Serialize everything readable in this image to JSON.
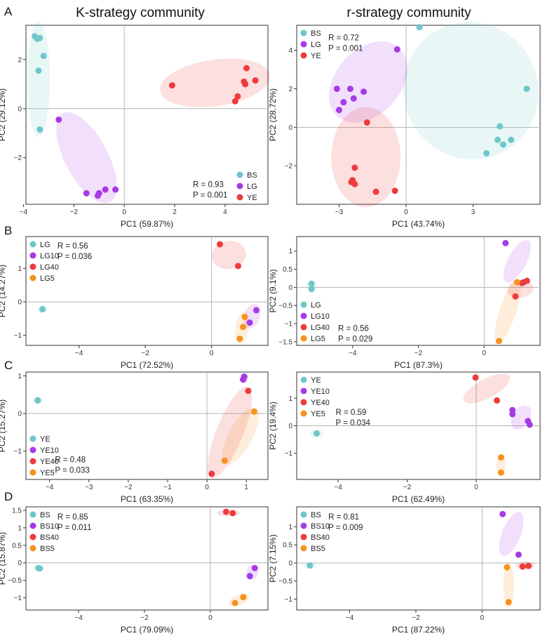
{
  "figure": {
    "column_titles": [
      "K-strategy community",
      "r-strategy community"
    ],
    "row_letters": [
      "A",
      "B",
      "C",
      "D"
    ]
  },
  "colors": {
    "teal": "#6ec6c9",
    "purple": "#a63ae6",
    "red": "#ee3b3b",
    "orange": "#f6921e"
  },
  "chart_data": [
    {
      "type": "scatter",
      "xlabel": "PC1 (59.87%)",
      "ylabel": "PC2 (29.12%)",
      "xlim": [
        -3.9,
        5.7
      ],
      "ylim": [
        -3.9,
        3.4
      ],
      "xticks": [
        -4,
        -2,
        0,
        2,
        4
      ],
      "yticks": [
        -2,
        0,
        2
      ],
      "stats": {
        "r": "R = 0.93",
        "p": "P = 0.001"
      },
      "legend": [
        "BS",
        "LG",
        "YE"
      ],
      "series": [
        {
          "name": "BS",
          "color": "teal",
          "ellipse": {
            "cx": -3.4,
            "cy": 1.2,
            "rx": 0.45,
            "ry": 2.35,
            "angle": 0
          },
          "points": [
            [
              -3.55,
              2.95
            ],
            [
              -3.45,
              2.85
            ],
            [
              -3.35,
              2.88
            ],
            [
              -3.2,
              2.15
            ],
            [
              -3.4,
              1.55
            ],
            [
              -3.35,
              -0.85
            ]
          ]
        },
        {
          "name": "LG",
          "color": "purple",
          "ellipse": {
            "cx": -1.5,
            "cy": -2.0,
            "rx": 0.85,
            "ry": 2.05,
            "angle": -28
          },
          "points": [
            [
              -2.6,
              -0.45
            ],
            [
              -1.5,
              -3.45
            ],
            [
              -1.05,
              -3.55
            ],
            [
              -1.0,
              -3.45
            ],
            [
              -0.75,
              -3.3
            ],
            [
              -0.35,
              -3.3
            ]
          ]
        },
        {
          "name": "YE",
          "color": "red",
          "ellipse": {
            "cx": 3.6,
            "cy": 1.05,
            "rx": 2.2,
            "ry": 0.95,
            "angle": -8
          },
          "points": [
            [
              1.9,
              0.95
            ],
            [
              4.5,
              0.5
            ],
            [
              4.4,
              0.3
            ],
            [
              4.75,
              1.1
            ],
            [
              4.8,
              1.0
            ],
            [
              4.85,
              1.65
            ],
            [
              5.2,
              1.15
            ]
          ]
        }
      ]
    },
    {
      "type": "scatter",
      "xlabel": "PC1 (43.74%)",
      "ylabel": "PC2 (28.72%)",
      "xlim": [
        -4.9,
        6.0
      ],
      "ylim": [
        -4.0,
        5.3
      ],
      "xticks": [
        -3,
        0,
        3
      ],
      "yticks": [
        -2,
        0,
        2,
        4
      ],
      "stats": {
        "r": "R = 0.72",
        "p": "P = 0.001"
      },
      "legend": [
        "BS",
        "LG",
        "YE"
      ],
      "series": [
        {
          "name": "BS",
          "color": "teal",
          "ellipse": {
            "cx": 2.9,
            "cy": 1.9,
            "rx": 3.0,
            "ry": 3.6,
            "angle": -28
          },
          "points": [
            [
              0.6,
              5.2
            ],
            [
              5.4,
              2.0
            ],
            [
              4.2,
              0.05
            ],
            [
              4.1,
              -0.65
            ],
            [
              4.35,
              -0.9
            ],
            [
              4.7,
              -0.65
            ],
            [
              3.6,
              -1.35
            ]
          ]
        },
        {
          "name": "LG",
          "color": "purple",
          "ellipse": {
            "cx": -1.7,
            "cy": 2.35,
            "rx": 1.45,
            "ry": 2.4,
            "angle": 42
          },
          "points": [
            [
              -0.4,
              4.05
            ],
            [
              -3.1,
              2.0
            ],
            [
              -2.5,
              2.0
            ],
            [
              -1.9,
              1.85
            ],
            [
              -2.8,
              1.3
            ],
            [
              -2.35,
              1.5
            ],
            [
              -3.0,
              0.9
            ]
          ]
        },
        {
          "name": "YE",
          "color": "red",
          "ellipse": {
            "cx": -1.8,
            "cy": -1.55,
            "rx": 1.55,
            "ry": 2.6,
            "angle": 0
          },
          "points": [
            [
              -1.75,
              0.25
            ],
            [
              -2.3,
              -2.1
            ],
            [
              -2.4,
              -2.75
            ],
            [
              -2.3,
              -2.95
            ],
            [
              -2.45,
              -2.85
            ],
            [
              -1.35,
              -3.35
            ],
            [
              -0.5,
              -3.3
            ]
          ]
        }
      ]
    },
    {
      "type": "scatter",
      "xlabel": "PC1 (72.52%)",
      "ylabel": "PC2 (14.27%)",
      "xlim": [
        -5.6,
        1.7
      ],
      "ylim": [
        -1.3,
        1.95
      ],
      "xticks": [
        -4,
        -2,
        0
      ],
      "yticks": [
        -1,
        0,
        1
      ],
      "stats": {
        "r": "R = 0.56",
        "p": "P = 0.036"
      },
      "legend": [
        "LG",
        "LG10",
        "LG40",
        "LG5"
      ],
      "series": [
        {
          "name": "LG",
          "color": "teal",
          "ellipse": {
            "cx": -5.1,
            "cy": -0.22,
            "rx": 0.14,
            "ry": 0.11,
            "angle": 0
          },
          "points": [
            [
              -5.1,
              -0.22
            ]
          ]
        },
        {
          "name": "LG10",
          "color": "purple",
          "ellipse": {
            "cx": 1.22,
            "cy": -0.42,
            "rx": 0.24,
            "ry": 0.38,
            "angle": 18
          },
          "points": [
            [
              1.35,
              -0.25
            ],
            [
              1.15,
              -0.62
            ]
          ]
        },
        {
          "name": "LG40",
          "color": "red",
          "ellipse": {
            "cx": 0.52,
            "cy": 1.4,
            "rx": 0.52,
            "ry": 0.42,
            "angle": -10
          },
          "points": [
            [
              0.25,
              1.72
            ],
            [
              0.8,
              1.07
            ]
          ]
        },
        {
          "name": "LG5",
          "color": "orange",
          "ellipse": {
            "cx": 0.92,
            "cy": -0.78,
            "rx": 0.2,
            "ry": 0.5,
            "angle": 8
          },
          "points": [
            [
              1.0,
              -0.45
            ],
            [
              0.95,
              -0.75
            ],
            [
              0.85,
              -1.1
            ]
          ]
        }
      ]
    },
    {
      "type": "scatter",
      "xlabel": "PC1 (87.3%)",
      "ylabel": "PC2 (9.1%)",
      "xlim": [
        -5.7,
        1.7
      ],
      "ylim": [
        -1.6,
        1.4
      ],
      "xticks": [
        -4,
        -2,
        0
      ],
      "yticks": [
        -1.5,
        -1.0,
        -0.5,
        0.0,
        0.5,
        1.0
      ],
      "stats": {
        "r": "R = 0.56",
        "p": "P = 0.029"
      },
      "legend": [
        "LG",
        "LG10",
        "LG40",
        "LG5"
      ],
      "series": [
        {
          "name": "LG",
          "color": "teal",
          "ellipse": {
            "cx": -5.25,
            "cy": 0.05,
            "rx": 0.16,
            "ry": 0.12,
            "angle": 0
          },
          "points": [
            [
              -5.25,
              0.1
            ],
            [
              -5.25,
              -0.05
            ]
          ]
        },
        {
          "name": "LG10",
          "color": "purple",
          "ellipse": {
            "cx": 1.0,
            "cy": 0.72,
            "rx": 0.28,
            "ry": 0.65,
            "angle": 28
          },
          "points": [
            [
              0.65,
              1.22
            ],
            [
              1.2,
              0.14
            ]
          ]
        },
        {
          "name": "LG40",
          "color": "red",
          "ellipse": {
            "cx": 1.1,
            "cy": -0.05,
            "rx": 0.4,
            "ry": 0.24,
            "angle": -10
          },
          "points": [
            [
              1.3,
              0.18
            ],
            [
              1.15,
              0.12
            ],
            [
              0.95,
              -0.25
            ]
          ]
        },
        {
          "name": "LG5",
          "color": "orange",
          "ellipse": {
            "cx": 0.72,
            "cy": -0.65,
            "rx": 0.25,
            "ry": 0.95,
            "angle": 18
          },
          "points": [
            [
              0.45,
              -1.48
            ],
            [
              1.0,
              0.14
            ]
          ]
        }
      ]
    },
    {
      "type": "scatter",
      "xlabel": "PC1 (63.35%)",
      "ylabel": "PC2 (15.27%)",
      "xlim": [
        -4.6,
        1.55
      ],
      "ylim": [
        -1.75,
        1.1
      ],
      "xticks": [
        -4,
        -3,
        -2,
        -1,
        0,
        1
      ],
      "yticks": [
        -1,
        0,
        1
      ],
      "stats": {
        "r": "R = 0.48",
        "p": "P = 0.033"
      },
      "legend": [
        "YE",
        "YE10",
        "YE40",
        "YE5"
      ],
      "series": [
        {
          "name": "YE",
          "color": "teal",
          "ellipse": {
            "cx": -4.3,
            "cy": 0.35,
            "rx": 0.12,
            "ry": 0.1,
            "angle": 0
          },
          "points": [
            [
              -4.3,
              0.35
            ]
          ]
        },
        {
          "name": "YE10",
          "color": "purple",
          "ellipse": {
            "cx": 0.93,
            "cy": 0.93,
            "rx": 0.11,
            "ry": 0.12,
            "angle": 0
          },
          "points": [
            [
              0.95,
              0.98
            ],
            [
              0.92,
              0.9
            ]
          ]
        },
        {
          "name": "YE40",
          "color": "red",
          "ellipse": {
            "cx": 0.58,
            "cy": -0.5,
            "rx": 0.34,
            "ry": 1.3,
            "angle": 22
          },
          "points": [
            [
              1.05,
              0.6
            ],
            [
              0.12,
              -1.6
            ]
          ]
        },
        {
          "name": "YE5",
          "color": "orange",
          "ellipse": {
            "cx": 0.85,
            "cy": -0.6,
            "rx": 0.3,
            "ry": 0.85,
            "angle": 28
          },
          "points": [
            [
              1.2,
              0.05
            ],
            [
              0.45,
              -1.25
            ]
          ]
        }
      ]
    },
    {
      "type": "scatter",
      "xlabel": "PC1 (62.49%)",
      "ylabel": "PC2 (19.4%)",
      "xlim": [
        -5.2,
        1.85
      ],
      "ylim": [
        -1.95,
        1.95
      ],
      "xticks": [
        -4,
        -2,
        0
      ],
      "yticks": [
        -1,
        0,
        1
      ],
      "stats": {
        "r": "R = 0.59",
        "p": "P = 0.034"
      },
      "legend": [
        "YE",
        "YE10",
        "YE40",
        "YE5"
      ],
      "series": [
        {
          "name": "YE",
          "color": "teal",
          "ellipse": {
            "cx": -4.62,
            "cy": -0.28,
            "rx": 0.2,
            "ry": 0.14,
            "angle": 0
          },
          "points": [
            [
              -4.62,
              -0.28
            ]
          ]
        },
        {
          "name": "YE10",
          "color": "purple",
          "ellipse": {
            "cx": 1.3,
            "cy": 0.3,
            "rx": 0.25,
            "ry": 0.48,
            "angle": 32
          },
          "points": [
            [
              1.05,
              0.57
            ],
            [
              1.05,
              0.42
            ],
            [
              1.5,
              0.17
            ],
            [
              1.55,
              0.04
            ]
          ]
        },
        {
          "name": "YE40",
          "color": "red",
          "ellipse": {
            "cx": 0.3,
            "cy": 1.35,
            "rx": 0.75,
            "ry": 0.35,
            "angle": -28
          },
          "points": [
            [
              -0.02,
              1.75
            ],
            [
              0.6,
              0.92
            ]
          ]
        },
        {
          "name": "YE5",
          "color": "orange",
          "ellipse": {
            "cx": 0.72,
            "cy": -1.42,
            "rx": 0.13,
            "ry": 0.4,
            "angle": 0
          },
          "points": [
            [
              0.72,
              -1.15
            ],
            [
              0.72,
              -1.7
            ]
          ]
        }
      ]
    },
    {
      "type": "scatter",
      "xlabel": "PC1 (79.09%)",
      "ylabel": "PC2 (15.87%)",
      "xlim": [
        -5.6,
        1.75
      ],
      "ylim": [
        -1.35,
        1.6
      ],
      "xticks": [
        -4,
        -2,
        0
      ],
      "yticks": [
        -1.0,
        -0.5,
        0.0,
        0.5,
        1.0,
        1.5
      ],
      "stats": {
        "r": "R = 0.85",
        "p": "P = 0.011"
      },
      "legend": [
        "BS",
        "BS10",
        "BS40",
        "BS5"
      ],
      "series": [
        {
          "name": "BS",
          "color": "teal",
          "ellipse": {
            "cx": -5.2,
            "cy": -0.15,
            "rx": 0.16,
            "ry": 0.07,
            "angle": 0
          },
          "points": [
            [
              -5.22,
              -0.15
            ],
            [
              -5.18,
              -0.16
            ]
          ]
        },
        {
          "name": "BS10",
          "color": "purple",
          "ellipse": {
            "cx": 1.28,
            "cy": -0.27,
            "rx": 0.18,
            "ry": 0.22,
            "angle": 10
          },
          "points": [
            [
              1.35,
              -0.15
            ],
            [
              1.2,
              -0.38
            ]
          ]
        },
        {
          "name": "BS40",
          "color": "red",
          "ellipse": {
            "cx": 0.55,
            "cy": 1.42,
            "rx": 0.35,
            "ry": 0.09,
            "angle": 0
          },
          "points": [
            [
              0.48,
              1.46
            ],
            [
              0.68,
              1.42
            ]
          ]
        },
        {
          "name": "BS5",
          "color": "orange",
          "ellipse": {
            "cx": 0.87,
            "cy": -1.06,
            "rx": 0.32,
            "ry": 0.15,
            "angle": -20
          },
          "points": [
            [
              1.0,
              -0.98
            ],
            [
              0.75,
              -1.15
            ]
          ]
        }
      ]
    },
    {
      "type": "scatter",
      "xlabel": "PC1 (87.22%)",
      "ylabel": "PC2 (7.15%)",
      "xlim": [
        -5.6,
        1.75
      ],
      "ylim": [
        -1.3,
        1.55
      ],
      "xticks": [
        -4,
        -2,
        0
      ],
      "yticks": [
        -1.0,
        -0.5,
        0.0,
        0.5,
        1.0
      ],
      "stats": {
        "r": "R = 0.81",
        "p": "P = 0.009"
      },
      "legend": [
        "BS",
        "BS10",
        "BS40",
        "BS5"
      ],
      "series": [
        {
          "name": "BS",
          "color": "teal",
          "ellipse": {
            "cx": -5.2,
            "cy": -0.07,
            "rx": 0.2,
            "ry": 0.09,
            "angle": 0
          },
          "points": [
            [
              -5.2,
              -0.07
            ]
          ]
        },
        {
          "name": "BS10",
          "color": "purple",
          "ellipse": {
            "cx": 0.88,
            "cy": 0.8,
            "rx": 0.28,
            "ry": 0.65,
            "angle": 22
          },
          "points": [
            [
              0.62,
              1.35
            ],
            [
              1.1,
              0.23
            ]
          ]
        },
        {
          "name": "BS40",
          "color": "red",
          "ellipse": {
            "cx": 1.3,
            "cy": -0.07,
            "rx": 0.28,
            "ry": 0.11,
            "angle": 0
          },
          "points": [
            [
              1.22,
              -0.1
            ],
            [
              1.4,
              -0.08
            ]
          ]
        },
        {
          "name": "BS5",
          "color": "orange",
          "ellipse": {
            "cx": 0.8,
            "cy": -0.62,
            "rx": 0.16,
            "ry": 0.62,
            "angle": 0
          },
          "points": [
            [
              0.75,
              -0.12
            ],
            [
              0.8,
              -1.08
            ]
          ]
        }
      ]
    }
  ]
}
